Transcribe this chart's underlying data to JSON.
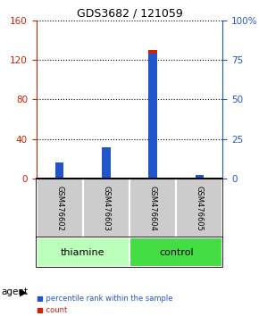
{
  "title": "GDS3682 / 121059",
  "samples": [
    "GSM476602",
    "GSM476603",
    "GSM476604",
    "GSM476605"
  ],
  "count_values": [
    15,
    32,
    130,
    0
  ],
  "percentile_values": [
    10,
    20,
    79,
    2
  ],
  "left_ylim": [
    0,
    160
  ],
  "right_ylim": [
    0,
    100
  ],
  "left_yticks": [
    0,
    40,
    80,
    120,
    160
  ],
  "right_yticks": [
    0,
    25,
    50,
    75,
    100
  ],
  "right_yticklabels": [
    "0",
    "25",
    "50",
    "75",
    "100%"
  ],
  "count_color": "#cc2200",
  "percentile_color": "#2255cc",
  "bar_width": 0.18,
  "groups": [
    {
      "label": "thiamine",
      "samples": [
        0,
        1
      ],
      "color": "#bbffbb"
    },
    {
      "label": "control",
      "samples": [
        2,
        3
      ],
      "color": "#44dd44"
    }
  ],
  "agent_label": "agent",
  "legend_items": [
    {
      "color": "#cc2200",
      "label": "count"
    },
    {
      "color": "#2255cc",
      "label": "percentile rank within the sample"
    }
  ],
  "sample_box_color": "#cccccc",
  "grid_linestyle": "dotted"
}
